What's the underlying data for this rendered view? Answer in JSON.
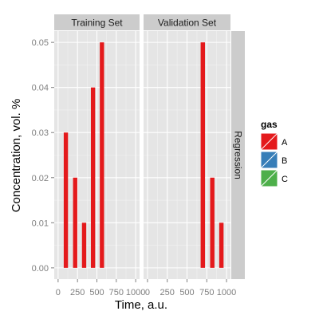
{
  "chart_data": {
    "type": "bar",
    "xlabel": "Time, a.u.",
    "ylabel": "Concentration, vol. %",
    "xlim": [
      -50,
      1050
    ],
    "ylim": [
      -0.0025,
      0.0525
    ],
    "xticks": [
      0,
      250,
      500,
      750,
      1000
    ],
    "yticks": [
      0.0,
      0.01,
      0.02,
      0.03,
      0.04,
      0.05
    ],
    "ytick_labels": [
      "0.00",
      "0.01",
      "0.02",
      "0.03",
      "0.04",
      "0.05"
    ],
    "bar_width": 55,
    "grid": true,
    "facet_row_label": "Regression",
    "panels": [
      {
        "label": "Training Set",
        "bars": [
          {
            "x": 100,
            "value": 0.03,
            "gas": "A"
          },
          {
            "x": 220,
            "value": 0.02,
            "gas": "A"
          },
          {
            "x": 335,
            "value": 0.01,
            "gas": "A"
          },
          {
            "x": 450,
            "value": 0.04,
            "gas": "A"
          },
          {
            "x": 565,
            "value": 0.05,
            "gas": "A"
          }
        ]
      },
      {
        "label": "Validation Set",
        "bars": [
          {
            "x": 700,
            "value": 0.05,
            "gas": "A"
          },
          {
            "x": 820,
            "value": 0.02,
            "gas": "A"
          },
          {
            "x": 935,
            "value": 0.01,
            "gas": "A"
          }
        ]
      }
    ],
    "legend": {
      "title": "gas",
      "placement": "right",
      "entries": [
        {
          "label": "A",
          "color": "#E41A1C"
        },
        {
          "label": "B",
          "color": "#377EB8"
        },
        {
          "label": "C",
          "color": "#4DAF4A"
        }
      ]
    }
  }
}
